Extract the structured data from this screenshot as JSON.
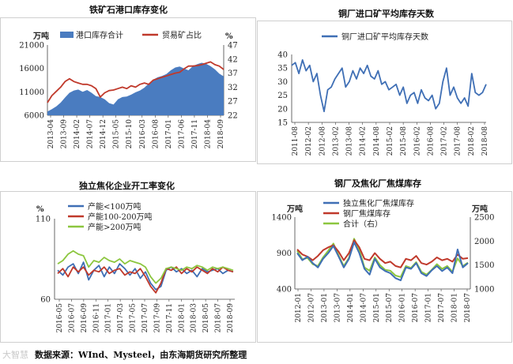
{
  "source_note": "数据来源：WInd、Mysteel，由东海期货研究所整理",
  "watermark": "大智慧",
  "chart_data": [
    {
      "type": "area+line",
      "title": "铁矿石港口库存变化",
      "left_unit": "万吨",
      "right_unit": "%",
      "left_ylim": [
        6000,
        21000
      ],
      "left_ticks": [
        "21000",
        "16000",
        "11000",
        "6000"
      ],
      "right_ylim": [
        22,
        47
      ],
      "right_ticks": [
        "47",
        "42",
        "37",
        "32",
        "27",
        "22"
      ],
      "xticks": [
        "2013-04",
        "2013-09",
        "2014-02",
        "2014-07",
        "2014-12",
        "2015-05",
        "2015-10",
        "2016-03",
        "2016-08",
        "2017-01",
        "2017-06",
        "2017-11",
        "2018-04",
        "2018-09"
      ],
      "series": [
        {
          "name": "港口库存合计",
          "axis": "left",
          "color": "#4a7cc0",
          "values": [
            6800,
            7300,
            7900,
            8700,
            9800,
            10800,
            11300,
            11500,
            11000,
            11400,
            10800,
            10100,
            9900,
            9400,
            8600,
            8300,
            9400,
            9900,
            10000,
            10400,
            10900,
            11300,
            11900,
            12800,
            13600,
            14100,
            14400,
            14800,
            15600,
            16200,
            16400,
            16000,
            15600,
            16500,
            16900,
            17200,
            17000,
            16500,
            15800,
            14900,
            14300
          ]
        },
        {
          "name": "贸易矿占比",
          "axis": "right",
          "color": "#c0392b",
          "values": [
            26.5,
            29,
            30.5,
            32,
            34,
            35,
            34,
            33.5,
            33,
            33,
            32.5,
            31.5,
            28.5,
            30,
            30.8,
            31,
            31.5,
            32,
            31.5,
            32.5,
            32,
            33,
            33.5,
            33,
            34.5,
            35,
            35.5,
            36,
            36.5,
            37,
            37.3,
            38.5,
            39.5,
            39.5,
            39.7,
            40,
            40.5,
            41,
            40,
            39.5,
            38.3
          ]
        }
      ]
    },
    {
      "type": "line",
      "title": "铜厂进口矿平均库存天数",
      "ylim": [
        15,
        40
      ],
      "yticks": [
        "40",
        "35",
        "30",
        "25",
        "20",
        "15"
      ],
      "xticks": [
        "2011-08",
        "2012-02",
        "2012-08",
        "2013-02",
        "2013-08",
        "2014-02",
        "2014-08",
        "2015-02",
        "2015-08",
        "2016-02",
        "2016-08",
        "2017-02",
        "2017-08",
        "2018-02",
        "2018-08"
      ],
      "series": [
        {
          "name": "铜厂进口矿平均库存天数",
          "color": "#3f6fb5",
          "values": [
            36,
            37,
            33,
            38,
            34,
            36,
            30,
            33,
            25,
            19,
            27,
            28,
            31,
            33,
            35,
            28,
            30,
            34,
            31,
            35,
            33,
            36,
            32,
            31,
            34,
            29,
            30,
            27,
            28,
            29,
            25,
            28,
            22,
            25,
            26,
            22,
            27,
            24,
            23,
            25,
            20,
            22,
            30,
            35,
            25,
            28,
            24,
            22,
            24,
            21,
            33,
            26,
            25,
            26,
            29
          ]
        }
      ]
    },
    {
      "type": "line",
      "title": "独立焦化企业开工率变化",
      "unit": "%",
      "ylim": [
        60,
        110
      ],
      "yticks": [
        "110",
        "60"
      ],
      "xticks": [
        "2016-05",
        "2016-07",
        "2016-09",
        "2016-11",
        "2017-01",
        "2017-03",
        "2017-05",
        "2017-07",
        "2017-09",
        "2017-11",
        "2018-01",
        "2018-03",
        "2018-05",
        "2018-07",
        "2018-09"
      ],
      "series": [
        {
          "name": "产能<100万吨",
          "color": "#3f6fb5",
          "values": [
            78,
            75,
            80,
            82,
            76,
            83,
            72,
            78,
            81,
            74,
            80,
            76,
            82,
            79,
            75,
            79,
            73,
            77,
            70,
            66,
            68,
            78,
            80,
            77,
            79,
            76,
            78,
            74,
            79,
            77,
            78,
            79,
            76,
            78,
            77
          ]
        },
        {
          "name": "产能100-200万吨",
          "color": "#c0392b",
          "values": [
            76,
            79,
            74,
            80,
            77,
            80,
            75,
            78,
            77,
            80,
            76,
            78,
            79,
            75,
            77,
            76,
            79,
            74,
            68,
            64,
            70,
            79,
            78,
            80,
            76,
            79,
            77,
            80,
            78,
            76,
            79,
            77,
            80,
            78,
            77
          ]
        },
        {
          "name": "产能>200万吨",
          "color": "#8cc63f",
          "values": [
            82,
            84,
            88,
            90,
            88,
            87,
            80,
            84,
            83,
            86,
            84,
            83,
            85,
            82,
            84,
            83,
            82,
            80,
            74,
            70,
            73,
            79,
            80,
            79,
            78,
            80,
            79,
            81,
            80,
            78,
            80,
            79,
            80,
            79,
            78
          ]
        }
      ]
    },
    {
      "type": "line",
      "title": "钢厂及焦化厂焦煤库存",
      "left_unit": "万吨",
      "right_unit": "万吨",
      "left_ylim": [
        400,
        1400
      ],
      "left_ticks": [
        "1400",
        "900",
        "400"
      ],
      "right_ylim": [
        1000,
        2500
      ],
      "right_ticks": [
        "2500",
        "2000",
        "1500",
        "1000"
      ],
      "xticks": [
        "2012-01",
        "2012-07",
        "2013-01",
        "2013-07",
        "2014-01",
        "2014-07",
        "2015-01",
        "2015-07",
        "2016-01",
        "2016-07",
        "2017-01",
        "2017-07",
        "2018-01",
        "2018-07"
      ],
      "series": [
        {
          "name": "独立焦化厂焦煤库存",
          "axis": "left",
          "color": "#3f6fb5",
          "values": [
            900,
            800,
            850,
            760,
            700,
            820,
            900,
            1000,
            850,
            700,
            820,
            1050,
            900,
            680,
            600,
            820,
            700,
            650,
            620,
            550,
            520,
            700,
            680,
            760,
            620,
            580,
            660,
            720,
            650,
            700,
            620,
            950,
            700,
            760
          ]
        },
        {
          "name": "钢厂焦煤库存",
          "axis": "left",
          "color": "#c0392b",
          "values": [
            950,
            880,
            850,
            800,
            860,
            940,
            980,
            1010,
            920,
            800,
            900,
            1080,
            980,
            820,
            800,
            900,
            820,
            760,
            780,
            720,
            700,
            820,
            800,
            860,
            760,
            740,
            780,
            840,
            800,
            820,
            780,
            880,
            820,
            830
          ]
        },
        {
          "name": "合计（右）",
          "axis": "right",
          "color": "#8cc63f",
          "values": [
            1800,
            1620,
            1650,
            1520,
            1480,
            1660,
            1800,
            1950,
            1700,
            1480,
            1650,
            2050,
            1820,
            1450,
            1380,
            1660,
            1500,
            1400,
            1380,
            1280,
            1250,
            1480,
            1440,
            1560,
            1360,
            1300,
            1400,
            1520,
            1420,
            1480,
            1360,
            1640,
            1480,
            1550
          ]
        }
      ]
    }
  ]
}
